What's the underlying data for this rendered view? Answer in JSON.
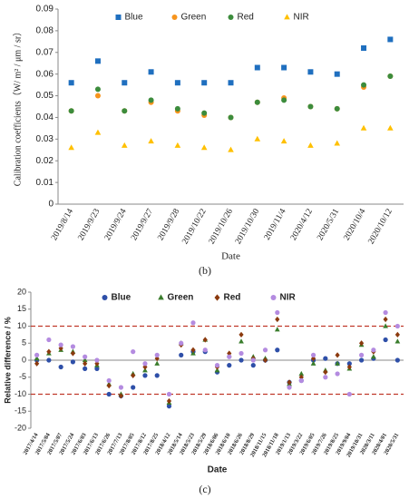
{
  "chart_data": [
    {
      "type": "scatter",
      "caption": "(b)",
      "xlabel": "Date",
      "ylabel": "Calibration coefficients（W/ m² / μm / sr）",
      "categories": [
        "2019/8/14",
        "2019/9/23",
        "2019/9/24",
        "2019/9/27",
        "2019/9/28",
        "2019/10/22",
        "2019/10/26",
        "2019/10/30",
        "2019/11/4",
        "2020/4/12",
        "2020/5/31",
        "2020/10/4",
        "2020/10/12"
      ],
      "series": [
        {
          "name": "Blue",
          "color": "#1f6fbf",
          "marker": "square",
          "values": [
            0.056,
            0.066,
            0.056,
            0.061,
            0.056,
            0.056,
            0.056,
            0.063,
            0.063,
            0.061,
            0.06,
            0.072,
            0.076
          ]
        },
        {
          "name": "Green",
          "color": "#f7941d",
          "marker": "circle",
          "values": [
            0.043,
            0.05,
            0.043,
            0.047,
            0.043,
            0.041,
            0.04,
            0.047,
            0.049,
            0.045,
            0.044,
            0.054,
            0.059
          ]
        },
        {
          "name": "Red",
          "color": "#3c8c3c",
          "marker": "circle",
          "values": [
            0.043,
            0.053,
            0.043,
            0.048,
            0.044,
            0.042,
            0.04,
            0.047,
            0.048,
            0.045,
            0.044,
            0.055,
            0.059
          ]
        },
        {
          "name": "NIR",
          "color": "#ffc000",
          "marker": "triangle",
          "values": [
            0.026,
            0.033,
            0.027,
            0.029,
            0.027,
            0.026,
            0.025,
            0.03,
            0.029,
            0.027,
            0.028,
            0.035,
            0.035
          ]
        }
      ],
      "ylim": [
        0,
        0.09
      ],
      "yticks": [
        0,
        0.01,
        0.02,
        0.03,
        0.04,
        0.05,
        0.06,
        0.07,
        0.08,
        0.09
      ],
      "legend": "top"
    },
    {
      "type": "scatter",
      "caption": "(c)",
      "xlabel": "Date",
      "ylabel": "Relative difference / %",
      "categories": [
        "2017/4/14",
        "2017/5/04",
        "2017/5/07",
        "2017/5/24",
        "2017/6/03",
        "2017/6/13",
        "2017/6/26",
        "2017/7/13",
        "2017/8/05",
        "2017/8/12",
        "2017/8/25",
        "2018/4/12",
        "2018/5/14",
        "2018/5/23",
        "2018/5/29",
        "2018/6/06",
        "2018/6/10",
        "2018/6/26",
        "2018/8/29",
        "2018/11/15",
        "2018/11/18",
        "2019/1/13",
        "2019/3/22",
        "2019/6/05",
        "2019/7/26",
        "2019/8/25",
        "2019/9/04",
        "2019/10/31",
        "2020/3/11",
        "2020/4/01",
        "2020/5/31"
      ],
      "series": [
        {
          "name": "Blue",
          "color": "#2e4fa8",
          "marker": "circle",
          "values": [
            0,
            0,
            -2,
            -0.5,
            -2.5,
            -2.5,
            -10,
            -10.5,
            -8,
            -4.5,
            -4.5,
            -13.5,
            1.5,
            2.5,
            2.5,
            -3.5,
            -1.5,
            0,
            -1.5,
            0,
            3,
            -6.5,
            -6,
            0,
            0.5,
            -1,
            -1,
            0,
            0.5,
            6,
            0
          ]
        },
        {
          "name": "Green",
          "color": "#3a7d2c",
          "marker": "triangle",
          "values": [
            0.5,
            2,
            3,
            2.5,
            0,
            -1.5,
            -7,
            -10,
            -4,
            -3,
            -1,
            -12.5,
            5,
            2,
            6,
            -3,
            1.5,
            5.5,
            1,
            0.5,
            9,
            -7,
            -4,
            -1,
            -3,
            -1,
            -2.5,
            4.5,
            1,
            10,
            5.5
          ]
        },
        {
          "name": "Red",
          "color": "#8b3a0e",
          "marker": "diamond",
          "values": [
            -1,
            2.5,
            3.5,
            2,
            -1,
            -1,
            -7.5,
            -10.5,
            -4.5,
            -2,
            0.5,
            -12,
            4.5,
            3,
            6,
            -2,
            2,
            7.5,
            0.5,
            0,
            12,
            -6.5,
            -5,
            0.5,
            -3.5,
            1.5,
            -2,
            5,
            2.5,
            12,
            7.5
          ]
        },
        {
          "name": "NIR",
          "color": "#b48be0",
          "marker": "circle",
          "values": [
            1.5,
            6,
            4.5,
            4,
            1,
            0,
            -6,
            -8,
            2.5,
            -1,
            1.5,
            -10,
            5,
            11,
            3,
            -1.5,
            1,
            2,
            0,
            3,
            14,
            -8,
            -6,
            1.5,
            -5,
            -4,
            -10,
            1.5,
            3,
            14,
            10
          ]
        }
      ],
      "ylim": [
        -20,
        20
      ],
      "yticks": [
        -20,
        -15,
        -10,
        -5,
        0,
        5,
        10,
        15,
        20
      ],
      "reference_lines": [
        10,
        -10
      ],
      "reference_color": "#c0392b",
      "legend": "top"
    }
  ]
}
